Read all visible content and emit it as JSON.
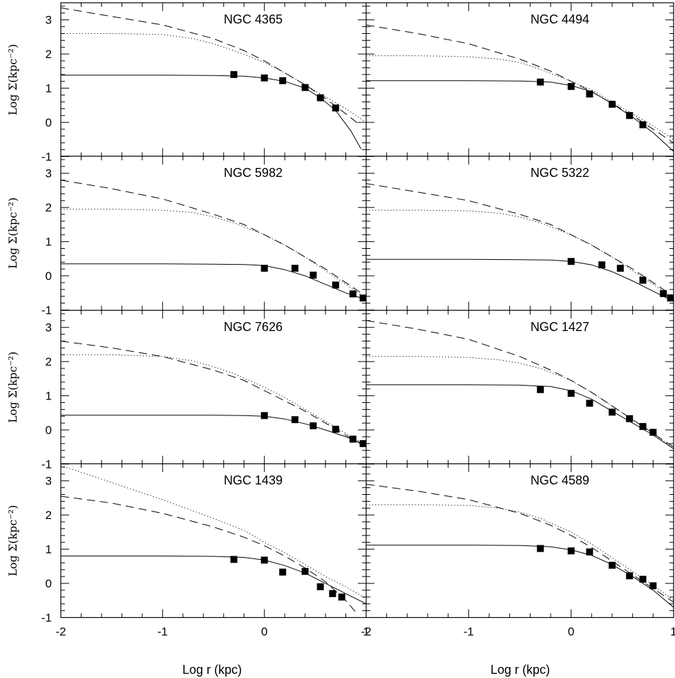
{
  "figure": {
    "xlabel": "Log r (kpc)",
    "ylabel": "Log Σ(kpc⁻²)"
  },
  "chart_data": [
    {
      "type": "line",
      "title": "NGC 4365",
      "xlim": [
        -2,
        1
      ],
      "ylim": [
        -1,
        3.5
      ],
      "xticks": [
        "-2",
        "-1",
        "0",
        "1"
      ],
      "yticks": [
        "-1",
        "0",
        "1",
        "2",
        "3"
      ],
      "series": [
        {
          "style": "solid",
          "x": [
            -2,
            -1,
            -0.5,
            -0.2,
            0,
            0.2,
            0.4,
            0.55,
            0.7,
            0.85,
            0.95
          ],
          "y": [
            1.38,
            1.38,
            1.37,
            1.35,
            1.3,
            1.2,
            1.0,
            0.72,
            0.35,
            -0.25,
            -0.78
          ]
        },
        {
          "style": "dotted",
          "x": [
            -2,
            -1.5,
            -1,
            -0.7,
            -0.5,
            -0.3,
            0,
            0.2,
            0.4,
            0.6,
            0.8,
            1.0
          ],
          "y": [
            2.6,
            2.6,
            2.57,
            2.45,
            2.3,
            2.1,
            1.75,
            1.45,
            1.1,
            0.75,
            0.4,
            0.0
          ]
        },
        {
          "style": "dashed",
          "x": [
            -2,
            -1.5,
            -1,
            -0.5,
            -0.2,
            0,
            0.2,
            0.4,
            0.6,
            0.8,
            0.95
          ],
          "y": [
            3.35,
            3.1,
            2.85,
            2.45,
            2.1,
            1.8,
            1.45,
            1.1,
            0.7,
            0.25,
            -0.1
          ]
        }
      ],
      "points": {
        "x": [
          -0.3,
          0,
          0.18,
          0.4,
          0.55,
          0.7
        ],
        "y": [
          1.4,
          1.3,
          1.22,
          1.02,
          0.72,
          0.42
        ]
      }
    },
    {
      "type": "line",
      "title": "NGC 4494",
      "xlim": [
        -2,
        1
      ],
      "ylim": [
        -1,
        3.5
      ],
      "xticks": [
        "-2",
        "-1",
        "0",
        "1"
      ],
      "yticks": [
        "-1",
        "0",
        "1",
        "2",
        "3"
      ],
      "series": [
        {
          "style": "solid",
          "x": [
            -2,
            -1,
            -0.5,
            -0.2,
            0,
            0.2,
            0.4,
            0.6,
            0.8,
            1.0
          ],
          "y": [
            1.22,
            1.22,
            1.21,
            1.18,
            1.08,
            0.9,
            0.55,
            0.15,
            -0.3,
            -0.85
          ]
        },
        {
          "style": "dotted",
          "x": [
            -2,
            -1.5,
            -1,
            -0.7,
            -0.5,
            -0.3,
            0,
            0.2,
            0.4,
            0.6,
            0.8,
            1.0
          ],
          "y": [
            1.95,
            1.95,
            1.92,
            1.85,
            1.75,
            1.55,
            1.2,
            0.95,
            0.6,
            0.25,
            -0.1,
            -0.5
          ]
        },
        {
          "style": "dashed",
          "x": [
            -2,
            -1.5,
            -1,
            -0.5,
            -0.2,
            0,
            0.2,
            0.4,
            0.6,
            0.8,
            1.0
          ],
          "y": [
            2.85,
            2.6,
            2.3,
            1.85,
            1.5,
            1.2,
            0.9,
            0.55,
            0.2,
            -0.2,
            -0.6
          ]
        }
      ],
      "points": {
        "x": [
          -0.3,
          0,
          0.18,
          0.4,
          0.57,
          0.7
        ],
        "y": [
          1.18,
          1.05,
          0.83,
          0.53,
          0.2,
          -0.07
        ]
      }
    },
    {
      "type": "line",
      "title": "NGC 5982",
      "xlim": [
        -2,
        1
      ],
      "ylim": [
        -1,
        3.5
      ],
      "xticks": [
        "-2",
        "-1",
        "0",
        "1"
      ],
      "yticks": [
        "-1",
        "0",
        "1",
        "2",
        "3"
      ],
      "series": [
        {
          "style": "solid",
          "x": [
            -2,
            -1,
            -0.5,
            -0.2,
            0,
            0.2,
            0.4,
            0.6,
            0.8,
            1.0
          ],
          "y": [
            0.35,
            0.35,
            0.34,
            0.33,
            0.3,
            0.18,
            0.0,
            -0.25,
            -0.5,
            -0.7
          ]
        },
        {
          "style": "dotted",
          "x": [
            -2,
            -1.5,
            -1,
            -0.7,
            -0.5,
            -0.3,
            0,
            0.2,
            0.4,
            0.6,
            0.8,
            1.0
          ],
          "y": [
            1.95,
            1.95,
            1.92,
            1.85,
            1.72,
            1.55,
            1.2,
            0.9,
            0.55,
            0.15,
            -0.25,
            -0.65
          ]
        },
        {
          "style": "dashed",
          "x": [
            -2,
            -1.5,
            -1,
            -0.5,
            -0.2,
            0,
            0.2,
            0.4,
            0.6,
            0.8,
            1.0
          ],
          "y": [
            2.8,
            2.55,
            2.25,
            1.8,
            1.5,
            1.2,
            0.9,
            0.55,
            0.2,
            -0.2,
            -0.6
          ]
        }
      ],
      "points": {
        "x": [
          0,
          0.3,
          0.48,
          0.7,
          0.87,
          0.97
        ],
        "y": [
          0.22,
          0.22,
          0.02,
          -0.27,
          -0.53,
          -0.65
        ]
      }
    },
    {
      "type": "line",
      "title": "NGC 5322",
      "xlim": [
        -2,
        1
      ],
      "ylim": [
        -1,
        3.5
      ],
      "xticks": [
        "-2",
        "-1",
        "0",
        "1"
      ],
      "yticks": [
        "-1",
        "0",
        "1",
        "2",
        "3"
      ],
      "series": [
        {
          "style": "solid",
          "x": [
            -2,
            -1,
            -0.5,
            -0.2,
            0,
            0.2,
            0.4,
            0.6,
            0.8,
            1.0
          ],
          "y": [
            0.48,
            0.48,
            0.47,
            0.46,
            0.42,
            0.32,
            0.12,
            -0.15,
            -0.45,
            -0.75
          ]
        },
        {
          "style": "dotted",
          "x": [
            -2,
            -1.5,
            -1,
            -0.7,
            -0.5,
            -0.3,
            0,
            0.2,
            0.4,
            0.6,
            0.8,
            1.0
          ],
          "y": [
            1.92,
            1.92,
            1.9,
            1.83,
            1.72,
            1.55,
            1.2,
            0.9,
            0.55,
            0.15,
            -0.25,
            -0.65
          ]
        },
        {
          "style": "dashed",
          "x": [
            -2,
            -1.5,
            -1,
            -0.5,
            -0.2,
            0,
            0.2,
            0.4,
            0.6,
            0.8,
            1.0
          ],
          "y": [
            2.7,
            2.45,
            2.2,
            1.8,
            1.5,
            1.2,
            0.9,
            0.55,
            0.2,
            -0.2,
            -0.6
          ]
        }
      ],
      "points": {
        "x": [
          0,
          0.3,
          0.48,
          0.7,
          0.9,
          0.97
        ],
        "y": [
          0.42,
          0.32,
          0.22,
          -0.13,
          -0.52,
          -0.65
        ]
      }
    },
    {
      "type": "line",
      "title": "NGC 7626",
      "xlim": [
        -2,
        1
      ],
      "ylim": [
        -1,
        3.5
      ],
      "xticks": [
        "-2",
        "-1",
        "0",
        "1"
      ],
      "yticks": [
        "-1",
        "0",
        "1",
        "2",
        "3"
      ],
      "series": [
        {
          "style": "solid",
          "x": [
            -2,
            -1,
            -0.5,
            -0.2,
            0,
            0.2,
            0.4,
            0.6,
            0.8,
            1.0
          ],
          "y": [
            0.43,
            0.43,
            0.43,
            0.42,
            0.4,
            0.32,
            0.18,
            0.0,
            -0.2,
            -0.45
          ]
        },
        {
          "style": "dotted",
          "x": [
            -2,
            -1.5,
            -1,
            -0.7,
            -0.5,
            -0.3,
            0,
            0.2,
            0.4,
            0.6,
            0.8,
            1.0
          ],
          "y": [
            2.2,
            2.2,
            2.15,
            2.02,
            1.85,
            1.65,
            1.25,
            0.95,
            0.6,
            0.25,
            -0.1,
            -0.45
          ]
        },
        {
          "style": "dashed",
          "x": [
            -2,
            -1.5,
            -1,
            -0.5,
            -0.2,
            0,
            0.2,
            0.4,
            0.6,
            0.8,
            1.0
          ],
          "y": [
            2.6,
            2.4,
            2.15,
            1.75,
            1.45,
            1.15,
            0.85,
            0.55,
            0.2,
            -0.15,
            -0.5
          ]
        }
      ],
      "points": {
        "x": [
          0,
          0.3,
          0.48,
          0.7,
          0.87,
          0.97
        ],
        "y": [
          0.42,
          0.3,
          0.12,
          0.02,
          -0.27,
          -0.4
        ]
      }
    },
    {
      "type": "line",
      "title": "NGC 1427",
      "xlim": [
        -2,
        1
      ],
      "ylim": [
        -1,
        3.5
      ],
      "xticks": [
        "-2",
        "-1",
        "0",
        "1"
      ],
      "yticks": [
        "-1",
        "0",
        "1",
        "2",
        "3"
      ],
      "series": [
        {
          "style": "solid",
          "x": [
            -2,
            -1,
            -0.5,
            -0.2,
            0,
            0.2,
            0.4,
            0.6,
            0.8,
            1.0
          ],
          "y": [
            1.32,
            1.32,
            1.31,
            1.27,
            1.15,
            0.9,
            0.55,
            0.2,
            -0.15,
            -0.55
          ]
        },
        {
          "style": "dotted",
          "x": [
            -2,
            -1.5,
            -1,
            -0.7,
            -0.5,
            -0.3,
            0,
            0.2,
            0.4,
            0.6,
            0.8,
            1.0
          ],
          "y": [
            2.15,
            2.15,
            2.12,
            2.05,
            1.95,
            1.8,
            1.45,
            1.1,
            0.7,
            0.3,
            -0.1,
            -0.55
          ]
        },
        {
          "style": "dashed",
          "x": [
            -2,
            -1.5,
            -1,
            -0.5,
            -0.2,
            0,
            0.2,
            0.4,
            0.6,
            0.8,
            1.0
          ],
          "y": [
            3.2,
            2.95,
            2.65,
            2.15,
            1.75,
            1.45,
            1.1,
            0.7,
            0.3,
            -0.1,
            -0.5
          ]
        }
      ],
      "points": {
        "x": [
          -0.3,
          0,
          0.18,
          0.4,
          0.57,
          0.7,
          0.8
        ],
        "y": [
          1.18,
          1.07,
          0.78,
          0.52,
          0.33,
          0.1,
          -0.07
        ]
      }
    },
    {
      "type": "line",
      "title": "NGC 1439",
      "xlim": [
        -2,
        1
      ],
      "ylim": [
        -1,
        3.5
      ],
      "xticks": [
        "-2",
        "-1",
        "0",
        "1"
      ],
      "yticks": [
        "-1",
        "0",
        "1",
        "2",
        "3"
      ],
      "series": [
        {
          "style": "solid",
          "x": [
            -2,
            -1,
            -0.5,
            -0.2,
            0,
            0.2,
            0.4,
            0.6,
            0.8,
            1.0
          ],
          "y": [
            0.8,
            0.8,
            0.79,
            0.76,
            0.68,
            0.52,
            0.3,
            0.0,
            -0.3,
            -0.6
          ]
        },
        {
          "style": "dotted",
          "x": [
            -2,
            -1.5,
            -1,
            -0.5,
            -0.2,
            0,
            0.2,
            0.4,
            0.6,
            0.8,
            1.0
          ],
          "y": [
            3.45,
            2.95,
            2.45,
            1.9,
            1.55,
            1.2,
            0.9,
            0.55,
            0.2,
            -0.1,
            -0.45
          ]
        },
        {
          "style": "dashed",
          "x": [
            -2,
            -1.5,
            -1,
            -0.5,
            -0.2,
            0,
            0.2,
            0.4,
            0.6,
            0.8,
            0.9
          ],
          "y": [
            2.55,
            2.35,
            2.05,
            1.65,
            1.35,
            1.1,
            0.8,
            0.45,
            0.05,
            -0.5,
            -0.85
          ]
        }
      ],
      "points": {
        "x": [
          -0.3,
          0,
          0.18,
          0.4,
          0.55,
          0.67,
          0.76
        ],
        "y": [
          0.7,
          0.68,
          0.33,
          0.35,
          -0.1,
          -0.3,
          -0.4
        ]
      }
    },
    {
      "type": "line",
      "title": "NGC 4589",
      "xlim": [
        -2,
        1
      ],
      "ylim": [
        -1,
        3.5
      ],
      "xticks": [
        "-2",
        "-1",
        "0",
        "1"
      ],
      "yticks": [
        "-1",
        "0",
        "1",
        "2",
        "3"
      ],
      "series": [
        {
          "style": "solid",
          "x": [
            -2,
            -1,
            -0.5,
            -0.2,
            0,
            0.2,
            0.4,
            0.6,
            0.8,
            1.0
          ],
          "y": [
            1.12,
            1.12,
            1.11,
            1.07,
            0.98,
            0.82,
            0.55,
            0.2,
            -0.2,
            -0.7
          ]
        },
        {
          "style": "dotted",
          "x": [
            -2,
            -1.5,
            -1,
            -0.7,
            -0.5,
            -0.3,
            0,
            0.2,
            0.4,
            0.6,
            0.8,
            1.0
          ],
          "y": [
            2.3,
            2.3,
            2.28,
            2.2,
            2.08,
            1.9,
            1.5,
            1.15,
            0.75,
            0.35,
            -0.05,
            -0.5
          ]
        },
        {
          "style": "dashed",
          "x": [
            -2,
            -1.5,
            -1,
            -0.5,
            -0.2,
            0,
            0.2,
            0.4,
            0.6,
            0.8,
            1.0
          ],
          "y": [
            2.9,
            2.7,
            2.45,
            2.05,
            1.7,
            1.4,
            1.05,
            0.65,
            0.25,
            -0.15,
            -0.55
          ]
        }
      ],
      "points": {
        "x": [
          -0.3,
          0,
          0.18,
          0.4,
          0.57,
          0.7,
          0.8
        ],
        "y": [
          1.02,
          0.95,
          0.92,
          0.53,
          0.22,
          0.12,
          -0.07
        ]
      }
    }
  ]
}
